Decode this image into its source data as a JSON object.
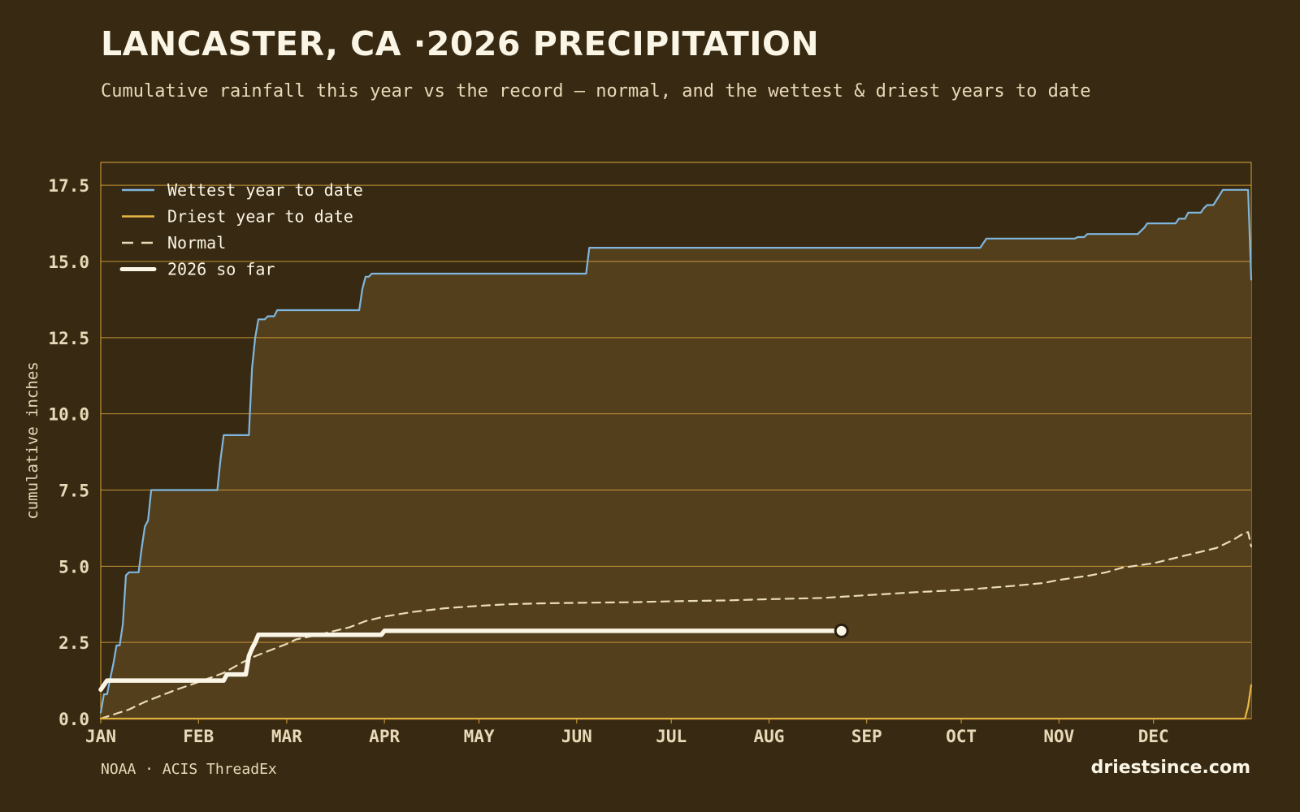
{
  "header": {
    "title": "LANCASTER, CA ·2026 PRECIPITATION",
    "subtitle": "Cumulative rainfall this year vs the record — normal, and the wettest & driest years to date"
  },
  "footer": {
    "source": "NOAA · ACIS ThreadEx",
    "brand": "driestsince.com"
  },
  "colors": {
    "background": "#382a12",
    "plot_fill": "#543f1d",
    "grid": "#d9a53a",
    "wettest": "#7fb6dd",
    "driest": "#e8b847",
    "normal": "#eadcb9",
    "current": "#fbf5e6"
  },
  "chart_data": {
    "type": "line",
    "title": "LANCASTER, CA ·2026 PRECIPITATION",
    "xlabel": "",
    "ylabel": "cumulative inches",
    "x_unit": "day of year",
    "xlim": [
      1,
      366
    ],
    "ylim": [
      0,
      18.25
    ],
    "yticks": [
      0.0,
      2.5,
      5.0,
      7.5,
      10.0,
      12.5,
      15.0,
      17.5
    ],
    "yticklabels": [
      "0.0",
      "2.5",
      "5.0",
      "7.5",
      "10.0",
      "12.5",
      "15.0",
      "17.5"
    ],
    "xticks": [
      1,
      32,
      60,
      91,
      121,
      152,
      182,
      213,
      244,
      274,
      305,
      335
    ],
    "xticklabels": [
      "JAN",
      "FEB",
      "MAR",
      "APR",
      "MAY",
      "JUN",
      "JUL",
      "AUG",
      "SEP",
      "OCT",
      "NOV",
      "DEC"
    ],
    "grid": true,
    "legend_position": "top-left",
    "series": [
      {
        "name": "Wettest year to date",
        "key": "wettest",
        "style": "solid",
        "x": [
          1,
          2,
          3,
          4,
          5,
          6,
          7,
          8,
          9,
          10,
          11,
          12,
          13,
          14,
          15,
          16,
          17,
          18,
          19,
          20,
          21,
          22,
          23,
          24,
          25,
          26,
          27,
          28,
          29,
          30,
          31,
          32,
          34,
          36,
          37,
          38,
          39,
          40,
          45,
          47,
          48,
          49,
          50,
          51,
          52,
          53,
          54,
          55,
          56,
          57,
          58,
          60,
          61,
          62,
          83,
          84,
          85,
          86,
          87,
          88,
          89,
          150,
          155,
          156,
          157,
          158,
          160,
          250,
          280,
          281,
          282,
          300,
          310,
          311,
          312,
          313,
          314,
          315,
          330,
          332,
          333,
          342,
          343,
          345,
          346,
          350,
          351,
          352,
          353,
          354,
          357,
          360,
          361,
          365,
          366
        ],
        "y": [
          0.2,
          0.8,
          0.8,
          1.3,
          1.8,
          2.4,
          2.4,
          3.1,
          4.7,
          4.8,
          4.8,
          4.8,
          4.8,
          5.6,
          6.3,
          6.5,
          7.5,
          7.5,
          7.5,
          7.5,
          7.5,
          7.5,
          7.5,
          7.5,
          7.5,
          7.5,
          7.5,
          7.5,
          7.5,
          7.5,
          7.5,
          7.5,
          7.5,
          7.5,
          7.5,
          7.5,
          8.5,
          9.3,
          9.3,
          9.3,
          9.3,
          11.5,
          12.5,
          13.1,
          13.1,
          13.1,
          13.2,
          13.2,
          13.2,
          13.4,
          13.4,
          13.4,
          13.4,
          13.4,
          13.4,
          14.1,
          14.5,
          14.5,
          14.6,
          14.6,
          14.6,
          14.6,
          14.6,
          15.45,
          15.45,
          15.45,
          15.45,
          15.45,
          15.45,
          15.6,
          15.75,
          15.75,
          15.75,
          15.8,
          15.8,
          15.8,
          15.9,
          15.9,
          15.9,
          16.1,
          16.25,
          16.25,
          16.4,
          16.4,
          16.6,
          16.6,
          16.75,
          16.85,
          16.85,
          16.85,
          17.35,
          17.35,
          17.35,
          17.35,
          14.4
        ]
      },
      {
        "name": "Driest year to date",
        "key": "driest",
        "style": "solid",
        "x": [
          1,
          360,
          364,
          365,
          366
        ],
        "y": [
          0,
          0,
          0,
          0.4,
          1.1
        ]
      },
      {
        "name": "Normal",
        "key": "normal",
        "style": "dashed",
        "x": [
          1,
          10,
          15,
          20,
          25,
          32,
          40,
          46,
          50,
          55,
          60,
          63,
          70,
          80,
          85,
          91,
          100,
          110,
          121,
          130,
          140,
          152,
          170,
          182,
          200,
          213,
          230,
          244,
          260,
          274,
          290,
          300,
          305,
          315,
          320,
          325,
          335,
          345,
          355,
          360,
          364,
          365,
          366
        ],
        "y": [
          0,
          0.3,
          0.55,
          0.75,
          0.95,
          1.2,
          1.5,
          1.85,
          2.05,
          2.25,
          2.45,
          2.6,
          2.75,
          3.0,
          3.2,
          3.35,
          3.5,
          3.62,
          3.7,
          3.75,
          3.78,
          3.8,
          3.82,
          3.85,
          3.88,
          3.92,
          3.96,
          4.05,
          4.15,
          4.22,
          4.35,
          4.45,
          4.55,
          4.7,
          4.8,
          4.95,
          5.1,
          5.35,
          5.6,
          5.85,
          6.1,
          6.12,
          5.65
        ]
      },
      {
        "name": "2026 so far",
        "key": "current",
        "style": "thick",
        "x": [
          1,
          2,
          3,
          40,
          41,
          47,
          48,
          49,
          50,
          51,
          52,
          53,
          60,
          90,
          91,
          236
        ],
        "y": [
          0.95,
          1.1,
          1.25,
          1.25,
          1.45,
          1.45,
          2.05,
          2.3,
          2.5,
          2.75,
          2.75,
          2.75,
          2.75,
          2.75,
          2.88,
          2.88
        ],
        "end_marker": true
      }
    ]
  }
}
